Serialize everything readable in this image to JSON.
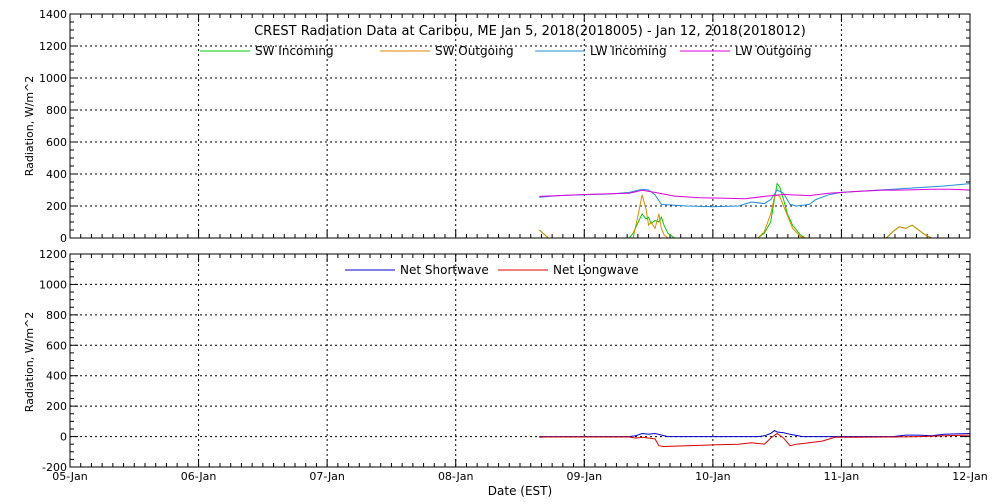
{
  "title": "CREST Radiation Data at Caribou, ME   Jan  5, 2018(2018005) - Jan 12, 2018(2018012)",
  "xlabel": "Date (EST)",
  "x_tick_labels": [
    "05-Jan",
    "06-Jan",
    "07-Jan",
    "08-Jan",
    "09-Jan",
    "10-Jan",
    "11-Jan",
    "12-Jan"
  ],
  "chart_data": [
    {
      "type": "line",
      "ylabel": "Radiation, W/m^2",
      "x_unit": "days since 05-Jan 00:00",
      "xlim": [
        0,
        7
      ],
      "ylim": [
        0,
        1400
      ],
      "y_ticks": [
        0,
        200,
        400,
        600,
        800,
        1000,
        1200,
        1400
      ],
      "grid": true,
      "legend_position": "top",
      "series": [
        {
          "name": "SW Incoming",
          "color": "#00cc00",
          "x": [
            3.65,
            3.68,
            3.72,
            4.35,
            4.38,
            4.42,
            4.45,
            4.48,
            4.5,
            4.52,
            4.55,
            4.58,
            4.6,
            4.62,
            4.65,
            4.7,
            5.35,
            5.4,
            5.45,
            5.48,
            5.5,
            5.52,
            5.55,
            5.58,
            5.62,
            5.68,
            5.72,
            6.35,
            6.4,
            6.45,
            6.5,
            6.55,
            6.6,
            6.65,
            6.7
          ],
          "y": [
            50,
            30,
            0,
            0,
            30,
            100,
            150,
            120,
            130,
            90,
            110,
            100,
            130,
            80,
            30,
            0,
            0,
            30,
            100,
            250,
            340,
            320,
            240,
            150,
            80,
            20,
            0,
            0,
            40,
            70,
            60,
            80,
            50,
            20,
            0
          ]
        },
        {
          "name": "SW Outgoing",
          "color": "#e08a00",
          "x": [
            3.65,
            3.68,
            3.72,
            4.38,
            4.42,
            4.45,
            4.48,
            4.5,
            4.52,
            4.55,
            4.58,
            4.6,
            4.62,
            4.65,
            4.7,
            5.35,
            5.4,
            5.45,
            5.48,
            5.5,
            5.52,
            5.55,
            5.58,
            5.62,
            5.68,
            5.72,
            6.35,
            6.4,
            6.45,
            6.5,
            6.55,
            6.6,
            6.65,
            6.7
          ],
          "y": [
            50,
            30,
            0,
            0,
            150,
            270,
            180,
            80,
            100,
            60,
            150,
            60,
            20,
            0,
            0,
            0,
            40,
            150,
            260,
            270,
            260,
            200,
            140,
            60,
            10,
            0,
            0,
            40,
            70,
            60,
            80,
            50,
            20,
            0
          ]
        },
        {
          "name": "LW Incoming",
          "color": "#1f8fd6",
          "x": [
            3.65,
            3.8,
            4.0,
            4.2,
            4.35,
            4.45,
            4.5,
            4.55,
            4.6,
            4.7,
            4.8,
            5.0,
            5.2,
            5.3,
            5.4,
            5.45,
            5.5,
            5.55,
            5.6,
            5.65,
            5.75,
            5.8,
            5.9,
            6.0,
            6.2,
            6.4,
            6.6,
            6.8,
            7.0
          ],
          "y": [
            255,
            265,
            270,
            275,
            285,
            305,
            300,
            270,
            210,
            205,
            200,
            195,
            200,
            225,
            215,
            240,
            300,
            280,
            210,
            200,
            210,
            240,
            270,
            285,
            295,
            305,
            315,
            325,
            340
          ]
        },
        {
          "name": "LW Outgoing",
          "color": "#e000e0",
          "x": [
            3.65,
            3.8,
            4.0,
            4.2,
            4.35,
            4.45,
            4.55,
            4.7,
            4.9,
            5.1,
            5.25,
            5.4,
            5.55,
            5.75,
            5.9,
            6.1,
            6.3,
            6.5,
            6.7,
            6.85,
            7.0
          ],
          "y": [
            260,
            265,
            272,
            276,
            280,
            298,
            285,
            262,
            252,
            248,
            245,
            260,
            272,
            265,
            280,
            290,
            298,
            300,
            305,
            305,
            300
          ]
        }
      ]
    },
    {
      "type": "line",
      "ylabel": "Radiation, W/m^2",
      "x_unit": "days since 05-Jan 00:00",
      "xlim": [
        0,
        7
      ],
      "ylim": [
        -200,
        1200
      ],
      "y_ticks": [
        -200,
        0,
        200,
        400,
        600,
        800,
        1000,
        1200
      ],
      "grid": true,
      "legend_position": "top",
      "series": [
        {
          "name": "Net Shortwave",
          "color": "#0000cc",
          "x": [
            3.65,
            3.7,
            4.35,
            4.4,
            4.45,
            4.5,
            4.55,
            4.65,
            5.35,
            5.4,
            5.45,
            5.48,
            5.5,
            5.55,
            5.6,
            5.7,
            6.4,
            6.5,
            6.6,
            6.7,
            6.8,
            7.0
          ],
          "y": [
            0,
            0,
            0,
            5,
            20,
            15,
            20,
            0,
            0,
            5,
            20,
            40,
            30,
            25,
            15,
            0,
            0,
            10,
            10,
            5,
            15,
            20
          ]
        },
        {
          "name": "Net Longwave",
          "color": "#dd0000",
          "x": [
            3.65,
            3.7,
            4.0,
            4.35,
            4.4,
            4.45,
            4.55,
            4.58,
            4.62,
            4.8,
            5.0,
            5.2,
            5.3,
            5.4,
            5.45,
            5.5,
            5.55,
            5.6,
            5.65,
            5.75,
            5.85,
            5.95,
            6.1,
            6.4,
            6.6,
            6.8,
            7.0
          ],
          "y": [
            -5,
            -3,
            -3,
            -3,
            -10,
            -5,
            -15,
            -60,
            -65,
            -60,
            -55,
            -50,
            -40,
            -50,
            -10,
            20,
            -10,
            -60,
            -50,
            -40,
            -30,
            -5,
            -5,
            -3,
            0,
            5,
            10
          ]
        }
      ]
    }
  ]
}
